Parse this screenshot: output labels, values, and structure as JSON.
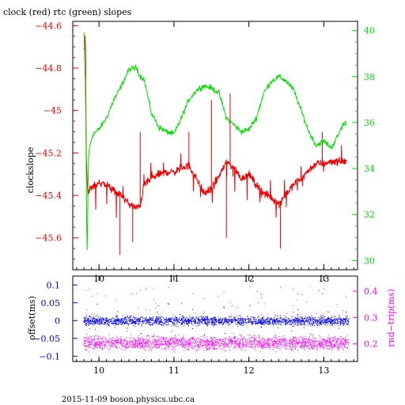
{
  "footer": "2015-11-09  boson.physics.ubc.ca",
  "colors": {
    "clock": "#ee0000",
    "rtc": "#00dd00",
    "offset": "#0000ee",
    "rtt": "#ff00ff",
    "axis": "#000000"
  },
  "chart_data": [
    {
      "type": "line",
      "title": "clock (red) rtc (green) slopes",
      "xlabel": "",
      "ylabel": "clockslope",
      "y2label": "",
      "xlim": [
        9.65,
        13.45
      ],
      "ylim": [
        -45.75,
        -44.58
      ],
      "y2lim": [
        29.6,
        40.4
      ],
      "xticks": [
        10,
        11,
        12,
        13
      ],
      "yticks": [
        -44.6,
        -44.8,
        -45,
        -45.2,
        -45.4,
        -45.6
      ],
      "yticklabels": [
        "−44.6",
        "−44.8",
        "−45",
        "−45.2",
        "−45.4",
        "−45.6"
      ],
      "y2ticks": [
        30,
        32,
        34,
        36,
        38,
        40
      ],
      "series": [
        {
          "name": "clock",
          "axis": "left",
          "x": [
            9.8,
            9.81,
            9.82,
            9.83,
            9.85,
            9.88,
            9.92,
            10.0,
            10.1,
            10.2,
            10.3,
            10.4,
            10.5,
            10.55,
            10.6,
            10.7,
            10.8,
            10.9,
            11.0,
            11.1,
            11.2,
            11.3,
            11.4,
            11.5,
            11.6,
            11.7,
            11.8,
            11.9,
            12.0,
            12.1,
            12.2,
            12.3,
            12.4,
            12.5,
            12.6,
            12.7,
            12.8,
            12.9,
            13.0,
            13.1,
            13.2,
            13.25,
            13.3
          ],
          "y": [
            -44.72,
            -44.64,
            -44.7,
            -45.2,
            -45.4,
            -45.37,
            -45.36,
            -45.34,
            -45.35,
            -45.38,
            -45.4,
            -45.44,
            -45.46,
            -45.45,
            -45.35,
            -45.32,
            -45.3,
            -45.29,
            -45.29,
            -45.27,
            -45.26,
            -45.32,
            -45.39,
            -45.37,
            -45.31,
            -45.24,
            -45.27,
            -45.32,
            -45.3,
            -45.35,
            -45.39,
            -45.41,
            -45.44,
            -45.39,
            -45.35,
            -45.32,
            -45.28,
            -45.25,
            -45.25,
            -45.24,
            -45.24,
            -45.24,
            -45.24
          ]
        },
        {
          "name": "rtc",
          "axis": "right",
          "x": [
            9.8,
            9.82,
            9.84,
            9.86,
            9.88,
            9.92,
            10.0,
            10.1,
            10.2,
            10.3,
            10.4,
            10.5,
            10.55,
            10.6,
            10.7,
            10.8,
            10.9,
            11.0,
            11.1,
            11.2,
            11.3,
            11.4,
            11.5,
            11.6,
            11.7,
            11.8,
            11.9,
            12.0,
            12.1,
            12.2,
            12.3,
            12.4,
            12.5,
            12.6,
            12.7,
            12.8,
            12.9,
            13.0,
            13.1,
            13.2,
            13.25,
            13.3
          ],
          "y": [
            39.9,
            37.5,
            30.0,
            34.5,
            35.0,
            35.5,
            35.7,
            36.2,
            37.0,
            37.6,
            38.3,
            38.4,
            38.0,
            37.9,
            36.4,
            35.8,
            35.6,
            35.5,
            36.2,
            37.0,
            37.4,
            37.6,
            37.5,
            37.3,
            36.2,
            35.9,
            35.6,
            35.7,
            36.2,
            37.3,
            37.8,
            38.0,
            37.8,
            37.4,
            36.5,
            35.6,
            35.0,
            35.2,
            34.9,
            35.5,
            35.9,
            36.0
          ]
        }
      ]
    },
    {
      "type": "scatter",
      "title": "",
      "xlabel": "",
      "ylabel": "offset(ms)",
      "y2label": "rnd−trip(ms)",
      "xlim": [
        9.65,
        13.45
      ],
      "ylim": [
        -0.115,
        0.125
      ],
      "y2lim": [
        0.133,
        0.457
      ],
      "xticks": [
        10,
        11,
        12,
        13
      ],
      "yticks": [
        0.1,
        0.05,
        0,
        -0.05,
        -0.1
      ],
      "yticklabels": [
        "0.1",
        "0.05",
        "0",
        "−0.05",
        "−0.1"
      ],
      "y2ticks": [
        0.2,
        0.3,
        0.4
      ],
      "series": [
        {
          "name": "offset",
          "axis": "left",
          "x": [
            9.8,
            10.0,
            10.5,
            11.0,
            11.5,
            12.0,
            12.5,
            13.0,
            13.3
          ],
          "y": [
            0.0,
            0.0,
            0.0,
            0.0,
            0.0,
            0.0,
            0.0,
            0.0,
            0.0
          ]
        },
        {
          "name": "rnd-trip",
          "axis": "right",
          "x": [
            9.8,
            10.0,
            10.5,
            11.0,
            11.5,
            12.0,
            12.5,
            13.0,
            13.3
          ],
          "y": [
            0.2,
            0.2,
            0.2,
            0.2,
            0.2,
            0.2,
            0.2,
            0.2,
            0.2
          ]
        }
      ]
    }
  ]
}
